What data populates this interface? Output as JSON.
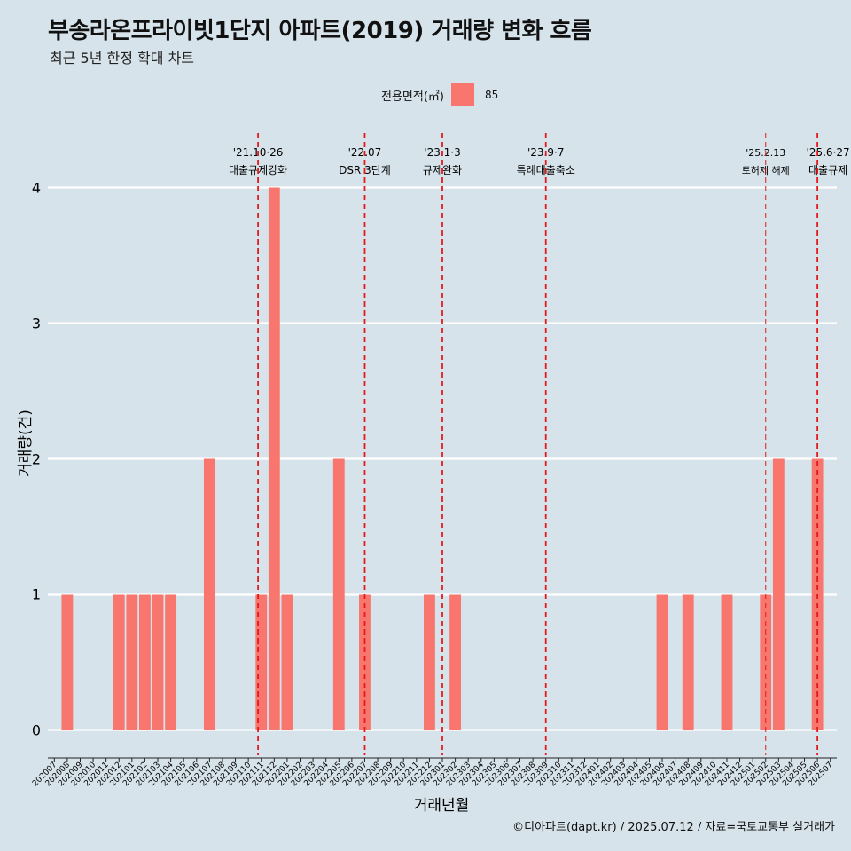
{
  "title": "부송라온프라이빗1단지 아파트(2019) 거래량 변화 흐름",
  "subtitle": "최근 5년 한정 확대 차트",
  "legend": {
    "title": "전용면적(㎡)",
    "label": "85",
    "color": "#f8766d"
  },
  "credit": "©디아파트(dapt.kr) / 2025.07.12 / 자료=국토교통부 실거래가",
  "chart_data": {
    "type": "bar",
    "title": "부송라온프라이빗1단지 아파트(2019) 거래량 변화 흐름",
    "subtitle": "최근 5년 한정 확대 차트",
    "xlabel": "거래년월",
    "ylabel": "거래량(건)",
    "ylim": [
      0,
      4
    ],
    "yticks": [
      0,
      1,
      2,
      3,
      4
    ],
    "grid": "horizontal",
    "legend_position": "top",
    "categories": [
      "202007",
      "202008",
      "202009",
      "202010",
      "202011",
      "202012",
      "202101",
      "202102",
      "202103",
      "202104",
      "202105",
      "202106",
      "202107",
      "202108",
      "202109",
      "202110",
      "202111",
      "202112",
      "202201",
      "202202",
      "202203",
      "202204",
      "202205",
      "202206",
      "202207",
      "202208",
      "202209",
      "202210",
      "202211",
      "202212",
      "202301",
      "202302",
      "202303",
      "202304",
      "202305",
      "202306",
      "202307",
      "202308",
      "202309",
      "202310",
      "202311",
      "202312",
      "202401",
      "202402",
      "202403",
      "202404",
      "202405",
      "202406",
      "202407",
      "202408",
      "202409",
      "202410",
      "202411",
      "202412",
      "202501",
      "202502",
      "202503",
      "202504",
      "202505",
      "202506",
      "202507"
    ],
    "series": [
      {
        "name": "85",
        "color": "#f8766d",
        "values": [
          0,
          1,
          0,
          0,
          0,
          1,
          1,
          1,
          1,
          1,
          0,
          0,
          2,
          0,
          0,
          0,
          1,
          4,
          1,
          0,
          0,
          0,
          2,
          0,
          1,
          0,
          0,
          0,
          0,
          1,
          0,
          1,
          0,
          0,
          0,
          0,
          0,
          0,
          0,
          0,
          0,
          0,
          0,
          0,
          0,
          0,
          0,
          1,
          0,
          1,
          0,
          0,
          1,
          0,
          0,
          1,
          2,
          0,
          0,
          2,
          0
        ]
      }
    ],
    "annotations": [
      {
        "date": "'21.10·26",
        "label": "대출규제강화",
        "x": "202110",
        "offset": 0.75
      },
      {
        "date": "'22.07",
        "label": "DSR 3단계",
        "x": "202207",
        "offset": 0.0
      },
      {
        "date": "'23.1·3",
        "label": "규제완화",
        "x": "202301",
        "offset": 0.0
      },
      {
        "date": "'23.9·7",
        "label": "특례대출축소",
        "x": "202309",
        "offset": 0.0
      },
      {
        "date": "'25.2.13",
        "label": "토허제 해제",
        "x": "202502",
        "offset": 0.0
      },
      {
        "date": "'25.6·27",
        "label": "대출규제",
        "x": "202506",
        "offset": 0.0
      }
    ]
  }
}
